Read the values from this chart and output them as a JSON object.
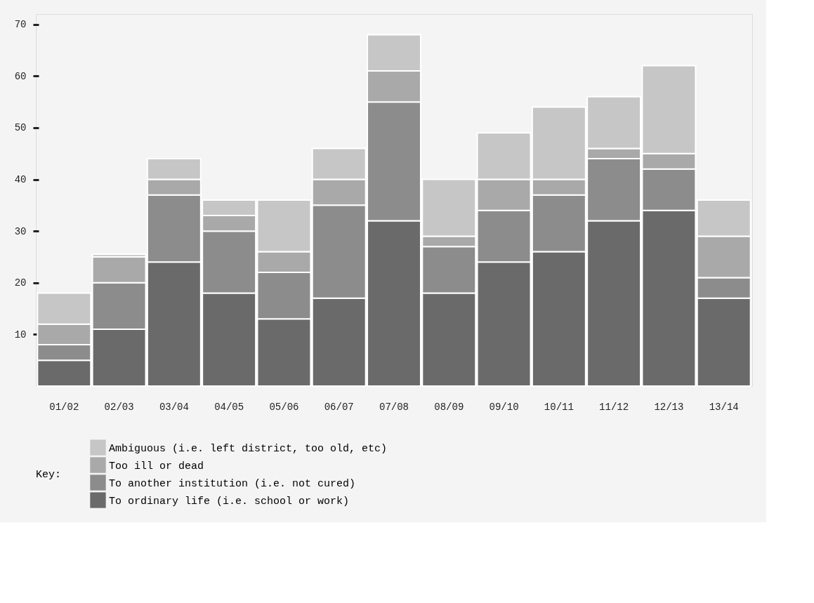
{
  "chart_data": {
    "type": "bar",
    "stacked": true,
    "legend_title": "Key:",
    "legend": "bottom",
    "categories": [
      "01/02",
      "02/03",
      "03/04",
      "04/05",
      "05/06",
      "06/07",
      "07/08",
      "08/09",
      "09/10",
      "10/11",
      "11/12",
      "12/13",
      "13/14"
    ],
    "series": [
      {
        "name": "To ordinary life (i.e. school or work)",
        "color": "#6a6a6a",
        "values": [
          5,
          11,
          24,
          18,
          13,
          17,
          32,
          18,
          24,
          26,
          32,
          34,
          17
        ]
      },
      {
        "name": "To another institution (i.e. not cured)",
        "color": "#8c8c8c",
        "values": [
          3,
          9,
          13,
          12,
          9,
          18,
          23,
          9,
          10,
          11,
          12,
          8,
          4
        ]
      },
      {
        "name": "Too ill or dead",
        "color": "#a9a9a9",
        "values": [
          4,
          5,
          3,
          3,
          4,
          5,
          6,
          2,
          6,
          3,
          2,
          3,
          8
        ]
      },
      {
        "name": "Ambiguous (i.e. left district, too old, etc)",
        "color": "#c6c6c6",
        "values": [
          6,
          0.5,
          4,
          3,
          10,
          6,
          7,
          11,
          9,
          14,
          10,
          17,
          7
        ]
      }
    ],
    "ylim": [
      0,
      72
    ],
    "yticks": [
      10,
      20,
      30,
      40,
      50,
      60,
      70
    ],
    "grid": false
  }
}
